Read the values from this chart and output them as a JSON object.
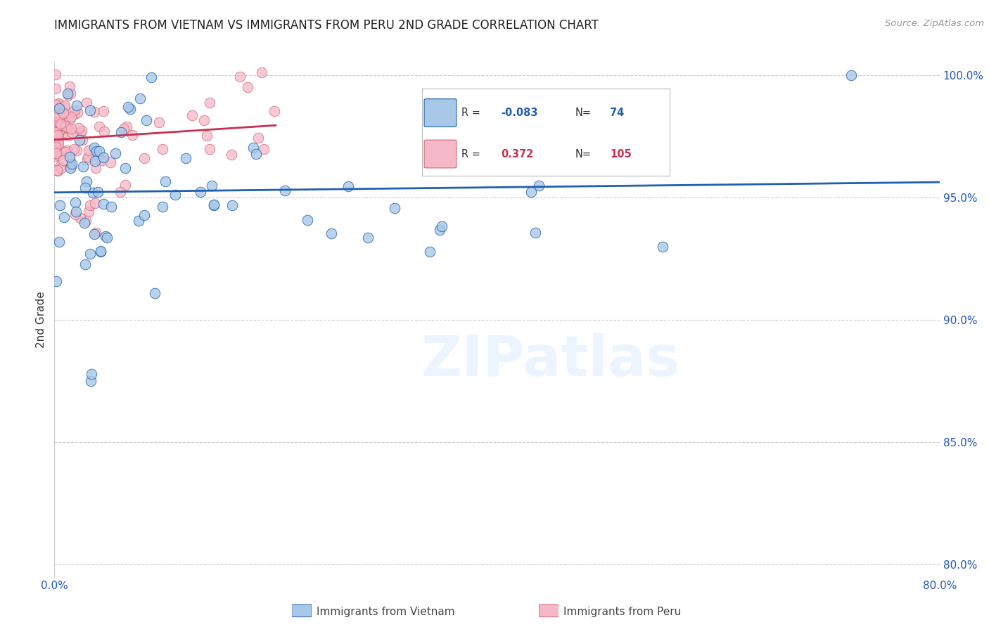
{
  "title": "IMMIGRANTS FROM VIETNAM VS IMMIGRANTS FROM PERU 2ND GRADE CORRELATION CHART",
  "source": "Source: ZipAtlas.com",
  "ylabel": "2nd Grade",
  "legend_label1": "Immigrants from Vietnam",
  "legend_label2": "Immigrants from Peru",
  "R1": -0.083,
  "N1": 74,
  "R2": 0.372,
  "N2": 105,
  "color_vietnam": "#a8c8e8",
  "color_peru": "#f5b8c8",
  "line_color_vietnam": "#2060b0",
  "line_color_peru": "#c83050",
  "watermark": "ZIPatlas",
  "xlim": [
    0.0,
    0.8
  ],
  "ylim": [
    0.795,
    1.005
  ],
  "xtick_positions": [
    0.0,
    0.1,
    0.2,
    0.3,
    0.4,
    0.5,
    0.6,
    0.7,
    0.8
  ],
  "xtick_labels": [
    "0.0%",
    "",
    "",
    "",
    "",
    "",
    "",
    "",
    "80.0%"
  ],
  "ytick_positions": [
    0.8,
    0.85,
    0.9,
    0.95,
    1.0
  ],
  "ytick_labels": [
    "80.0%",
    "85.0%",
    "90.0%",
    "95.0%",
    "100.0%"
  ]
}
